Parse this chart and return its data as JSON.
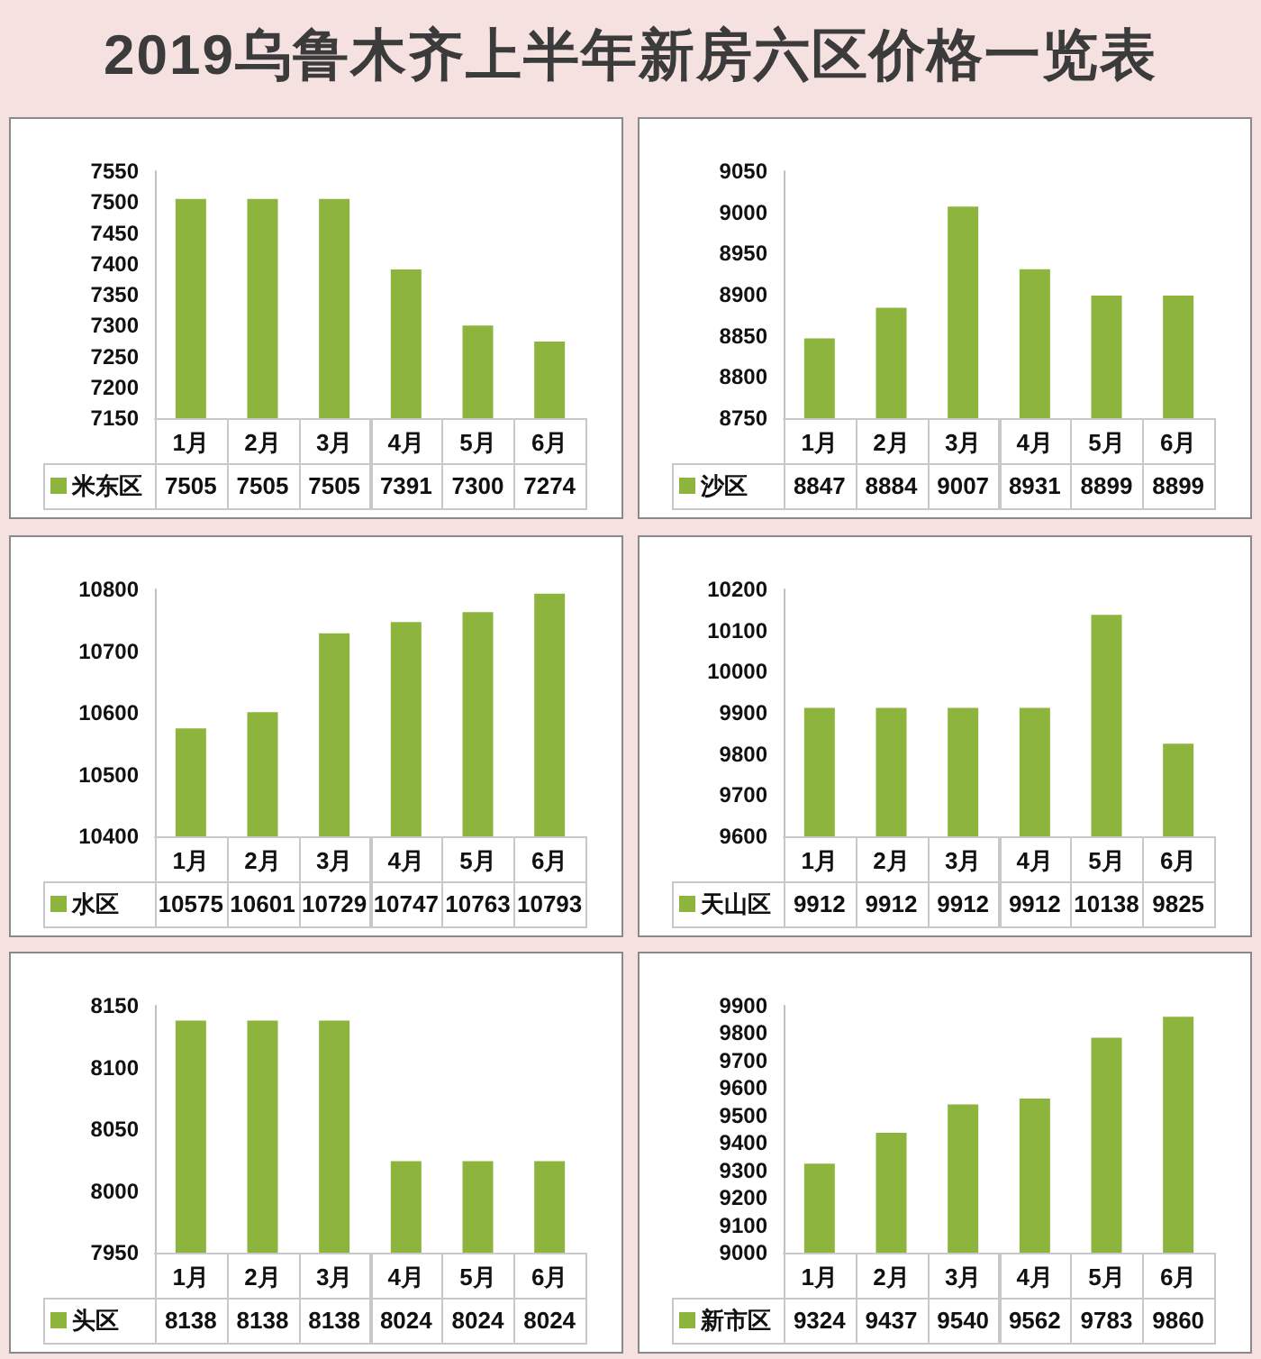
{
  "chart_data": [
    {
      "type": "bar",
      "title": "2019乌鲁木齐上半年新房六区价格一览表",
      "categories": [
        "1月",
        "2月",
        "3月",
        "4月",
        "5月",
        "6月"
      ],
      "series": [
        {
          "name": "米东区",
          "color": "#8db43c",
          "values": [
            7505,
            7505,
            7505,
            7391,
            7300,
            7274
          ]
        }
      ],
      "ylim": [
        7150,
        7550
      ],
      "yticks": [
        7150,
        7200,
        7250,
        7300,
        7350,
        7400,
        7450,
        7500,
        7550
      ],
      "data_labels": true,
      "legend": "bottom left"
    },
    {
      "type": "bar",
      "categories": [
        "1月",
        "2月",
        "3月",
        "4月",
        "5月",
        "6月"
      ],
      "series": [
        {
          "name": "沙区",
          "color": "#8db43c",
          "values": [
            8847,
            8884,
            9007,
            8931,
            8899,
            8899
          ]
        }
      ],
      "ylim": [
        8750,
        9050
      ],
      "yticks": [
        8750,
        8800,
        8850,
        8900,
        8950,
        9000,
        9050
      ],
      "data_labels": true,
      "legend": "bottom left"
    },
    {
      "type": "bar",
      "categories": [
        "1月",
        "2月",
        "3月",
        "4月",
        "5月",
        "6月"
      ],
      "series": [
        {
          "name": "水区",
          "color": "#8db43c",
          "values": [
            10575,
            10601,
            10729,
            10747,
            10763,
            10793
          ]
        }
      ],
      "ylim": [
        10400,
        10800
      ],
      "yticks": [
        10400,
        10500,
        10600,
        10700,
        10800
      ],
      "data_labels": true,
      "legend": "bottom left"
    },
    {
      "type": "bar",
      "categories": [
        "1月",
        "2月",
        "3月",
        "4月",
        "5月",
        "6月"
      ],
      "series": [
        {
          "name": "天山区",
          "color": "#8db43c",
          "values": [
            9912,
            9912,
            9912,
            9912,
            10138,
            9825
          ]
        }
      ],
      "ylim": [
        9600,
        10200
      ],
      "yticks": [
        9600,
        9700,
        9800,
        9900,
        10000,
        10100,
        10200
      ],
      "data_labels": true,
      "legend": "bottom left"
    },
    {
      "type": "bar",
      "categories": [
        "1月",
        "2月",
        "3月",
        "4月",
        "5月",
        "6月"
      ],
      "series": [
        {
          "name": "头区",
          "color": "#8db43c",
          "values": [
            8138,
            8138,
            8138,
            8024,
            8024,
            8024
          ]
        }
      ],
      "ylim": [
        7950,
        8150
      ],
      "yticks": [
        7950,
        8000,
        8050,
        8100,
        8150
      ],
      "data_labels": true,
      "legend": "bottom left"
    },
    {
      "type": "bar",
      "categories": [
        "1月",
        "2月",
        "3月",
        "4月",
        "5月",
        "6月"
      ],
      "series": [
        {
          "name": "新市区",
          "color": "#8db43c",
          "values": [
            9324,
            9437,
            9540,
            9562,
            9783,
            9860
          ]
        }
      ],
      "ylim": [
        9000,
        9900
      ],
      "yticks": [
        9000,
        9100,
        9200,
        9300,
        9400,
        9500,
        9600,
        9700,
        9800,
        9900
      ],
      "data_labels": true,
      "legend": "bottom left"
    }
  ]
}
